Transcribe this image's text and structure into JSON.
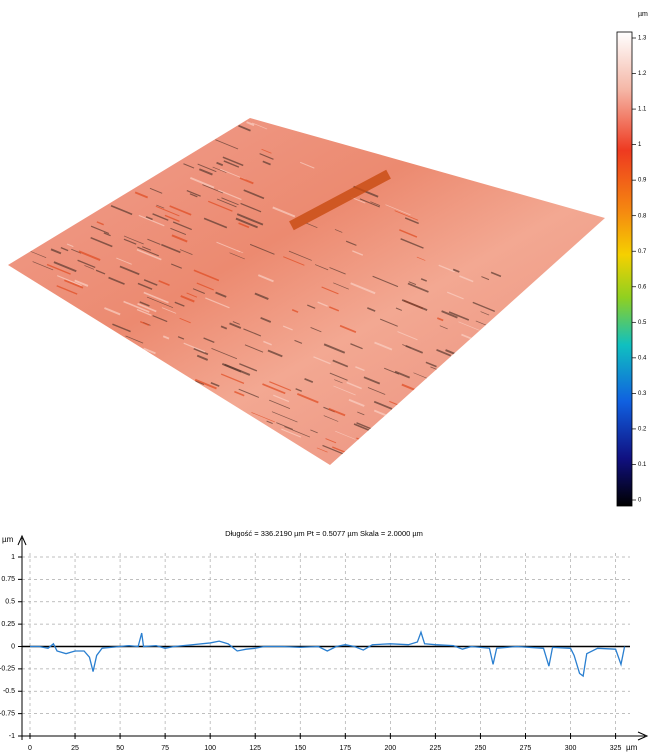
{
  "chart_data": [
    {
      "type": "colorbar",
      "unit": "µm",
      "ylim": [
        0,
        1.3
      ],
      "yticks": [
        0,
        0.1,
        0.2,
        0.3,
        0.4,
        0.5,
        0.6,
        0.7,
        0.8,
        0.9,
        1,
        1.1,
        1.2,
        1.3
      ]
    },
    {
      "type": "line",
      "title": "Długość = 336.2190 µm  Pt = 0.5077 µm  Skala = 2.0000 µm",
      "y_label": "µm",
      "x_label": "µm",
      "xlim": [
        0,
        333
      ],
      "ylim": [
        -1,
        1
      ],
      "xticks": [
        0,
        25,
        50,
        75,
        100,
        125,
        150,
        175,
        200,
        225,
        250,
        275,
        300,
        325
      ],
      "yticks": [
        1,
        0.75,
        0.5,
        0.25,
        0,
        -0.25,
        -0.5,
        -0.75,
        -1
      ],
      "grid": true,
      "series": [
        {
          "name": "profile",
          "color": "#2a7fd0",
          "x": [
            0,
            5,
            10,
            13,
            15,
            20,
            25,
            30,
            33,
            35,
            37,
            40,
            45,
            50,
            55,
            60,
            62,
            63,
            70,
            75,
            80,
            90,
            100,
            105,
            110,
            115,
            120,
            125,
            130,
            140,
            150,
            160,
            165,
            170,
            175,
            180,
            185,
            190,
            200,
            210,
            215,
            217,
            219,
            225,
            235,
            240,
            245,
            255,
            257,
            259,
            270,
            285,
            288,
            290,
            300,
            302,
            305,
            307,
            309,
            315,
            325,
            328,
            330
          ],
          "values": [
            0,
            0,
            -0.02,
            0.03,
            -0.05,
            -0.08,
            -0.05,
            -0.05,
            -0.12,
            -0.28,
            -0.1,
            -0.02,
            -0.01,
            0,
            0.01,
            0,
            0.15,
            0,
            0.01,
            -0.02,
            0,
            0.02,
            0.04,
            0.06,
            0.03,
            -0.05,
            -0.03,
            -0.02,
            0,
            0,
            -0.01,
            0,
            -0.05,
            0,
            0.02,
            0,
            -0.04,
            0.02,
            0.03,
            0.02,
            0.05,
            0.16,
            0.03,
            0.02,
            0.01,
            -0.03,
            0,
            -0.02,
            -0.2,
            -0.02,
            0,
            -0.02,
            -0.22,
            -0.01,
            -0.02,
            -0.1,
            -0.3,
            -0.33,
            -0.08,
            -0.02,
            -0.03,
            -0.2,
            0
          ]
        }
      ]
    }
  ]
}
